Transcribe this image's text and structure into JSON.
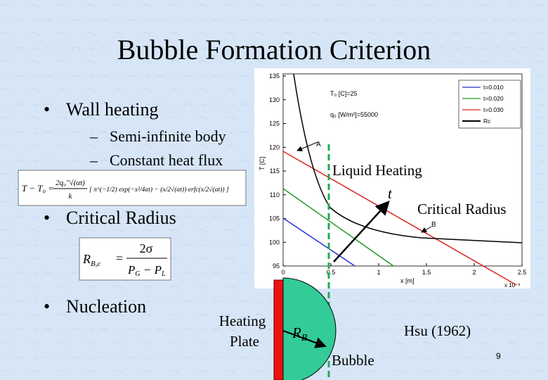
{
  "title": "Bubble Formation Criterion",
  "bullets": [
    {
      "text": "Wall heating",
      "sub": [
        "Semi-infinite body",
        "Constant heat flux"
      ]
    },
    {
      "text": "Critical Radius",
      "sub": []
    },
    {
      "text": "Nucleation",
      "sub": []
    }
  ],
  "equations": {
    "temperature": {
      "lhs": "T − T₀ =",
      "coef": "2q₀″√(αt)",
      "den": "k",
      "body": "[ π^(−1/2) exp(−x²/4αt) − (x/2√(αt)) erfc(x/2√(αt)) ]"
    },
    "critical_radius": {
      "lhs": "R",
      "lhs_sub": "B,c",
      "eq": "=",
      "num": "2σ",
      "den": "P",
      "den_sub1": "G",
      "den_mid": " − P",
      "den_sub2": "L"
    }
  },
  "plot": {
    "xticks": [
      "0",
      "0.5",
      "1",
      "1.5",
      "2",
      "2.5"
    ],
    "yticks": [
      "95",
      "100",
      "105",
      "110",
      "115",
      "120",
      "125",
      "130",
      "135"
    ],
    "xlabel": "x [m]",
    "xscale": "x 10⁻³",
    "ylabel": "T [C]",
    "params": [
      "T₀ [C]=25",
      "q₀ [W/m²]=55000"
    ],
    "legend": [
      {
        "name": "t=0.010",
        "color": "#2233cc"
      },
      {
        "name": "t=0.020",
        "color": "#229922"
      },
      {
        "name": "t=0.030",
        "color": "#dd2222"
      },
      {
        "name": "Rc",
        "color": "#000000"
      }
    ],
    "point_a": "A",
    "point_b": "B"
  },
  "annotations": {
    "liquid_heating": "Liquid Heating",
    "t": "t",
    "critical_radius": "Critical Radius",
    "heating_plate": [
      "Heating",
      "Plate"
    ],
    "rb_main": "R",
    "rb_sub": "B",
    "bubble": "Bubble",
    "reference": "Hsu (1962)"
  },
  "page_number": "9"
}
